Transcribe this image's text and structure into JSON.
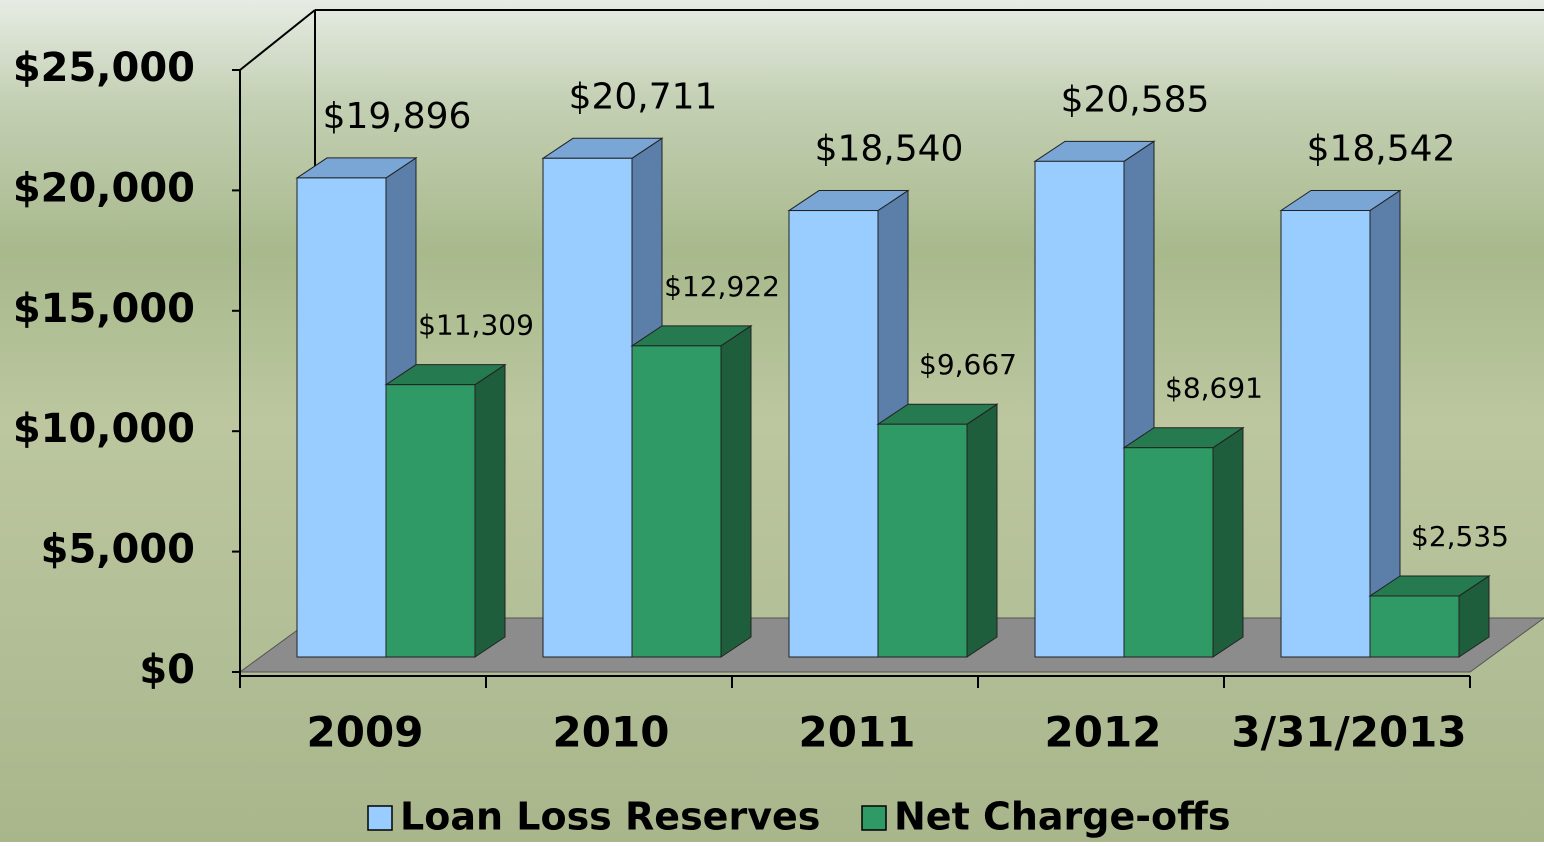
{
  "chart_data": {
    "type": "bar3d",
    "categories": [
      "2009",
      "2010",
      "2011",
      "2012",
      "3/31/2013"
    ],
    "series": [
      {
        "name": "Loan Loss Reserves",
        "color": "#99ccff",
        "values": [
          19896,
          20711,
          18540,
          20585,
          18542
        ],
        "value_labels": [
          "$19,896",
          "$20,711",
          "$18,540",
          "$20,585",
          "$18,542"
        ]
      },
      {
        "name": "Net Charge-offs",
        "color": "#2f9a66",
        "values": [
          11309,
          12922,
          9667,
          8691,
          2535
        ],
        "value_labels": [
          "$11,309",
          "$12,922",
          "$9,667",
          "$8,691",
          "$2,535"
        ]
      }
    ],
    "ylim": [
      0,
      25000
    ],
    "yticks": [
      {
        "value": 0,
        "label": "$0"
      },
      {
        "value": 5000,
        "label": "$5,000"
      },
      {
        "value": 10000,
        "label": "$10,000"
      },
      {
        "value": 15000,
        "label": "$15,000"
      },
      {
        "value": 20000,
        "label": "$20,000"
      },
      {
        "value": 25000,
        "label": "$25,000"
      }
    ],
    "legend": "bottom"
  }
}
